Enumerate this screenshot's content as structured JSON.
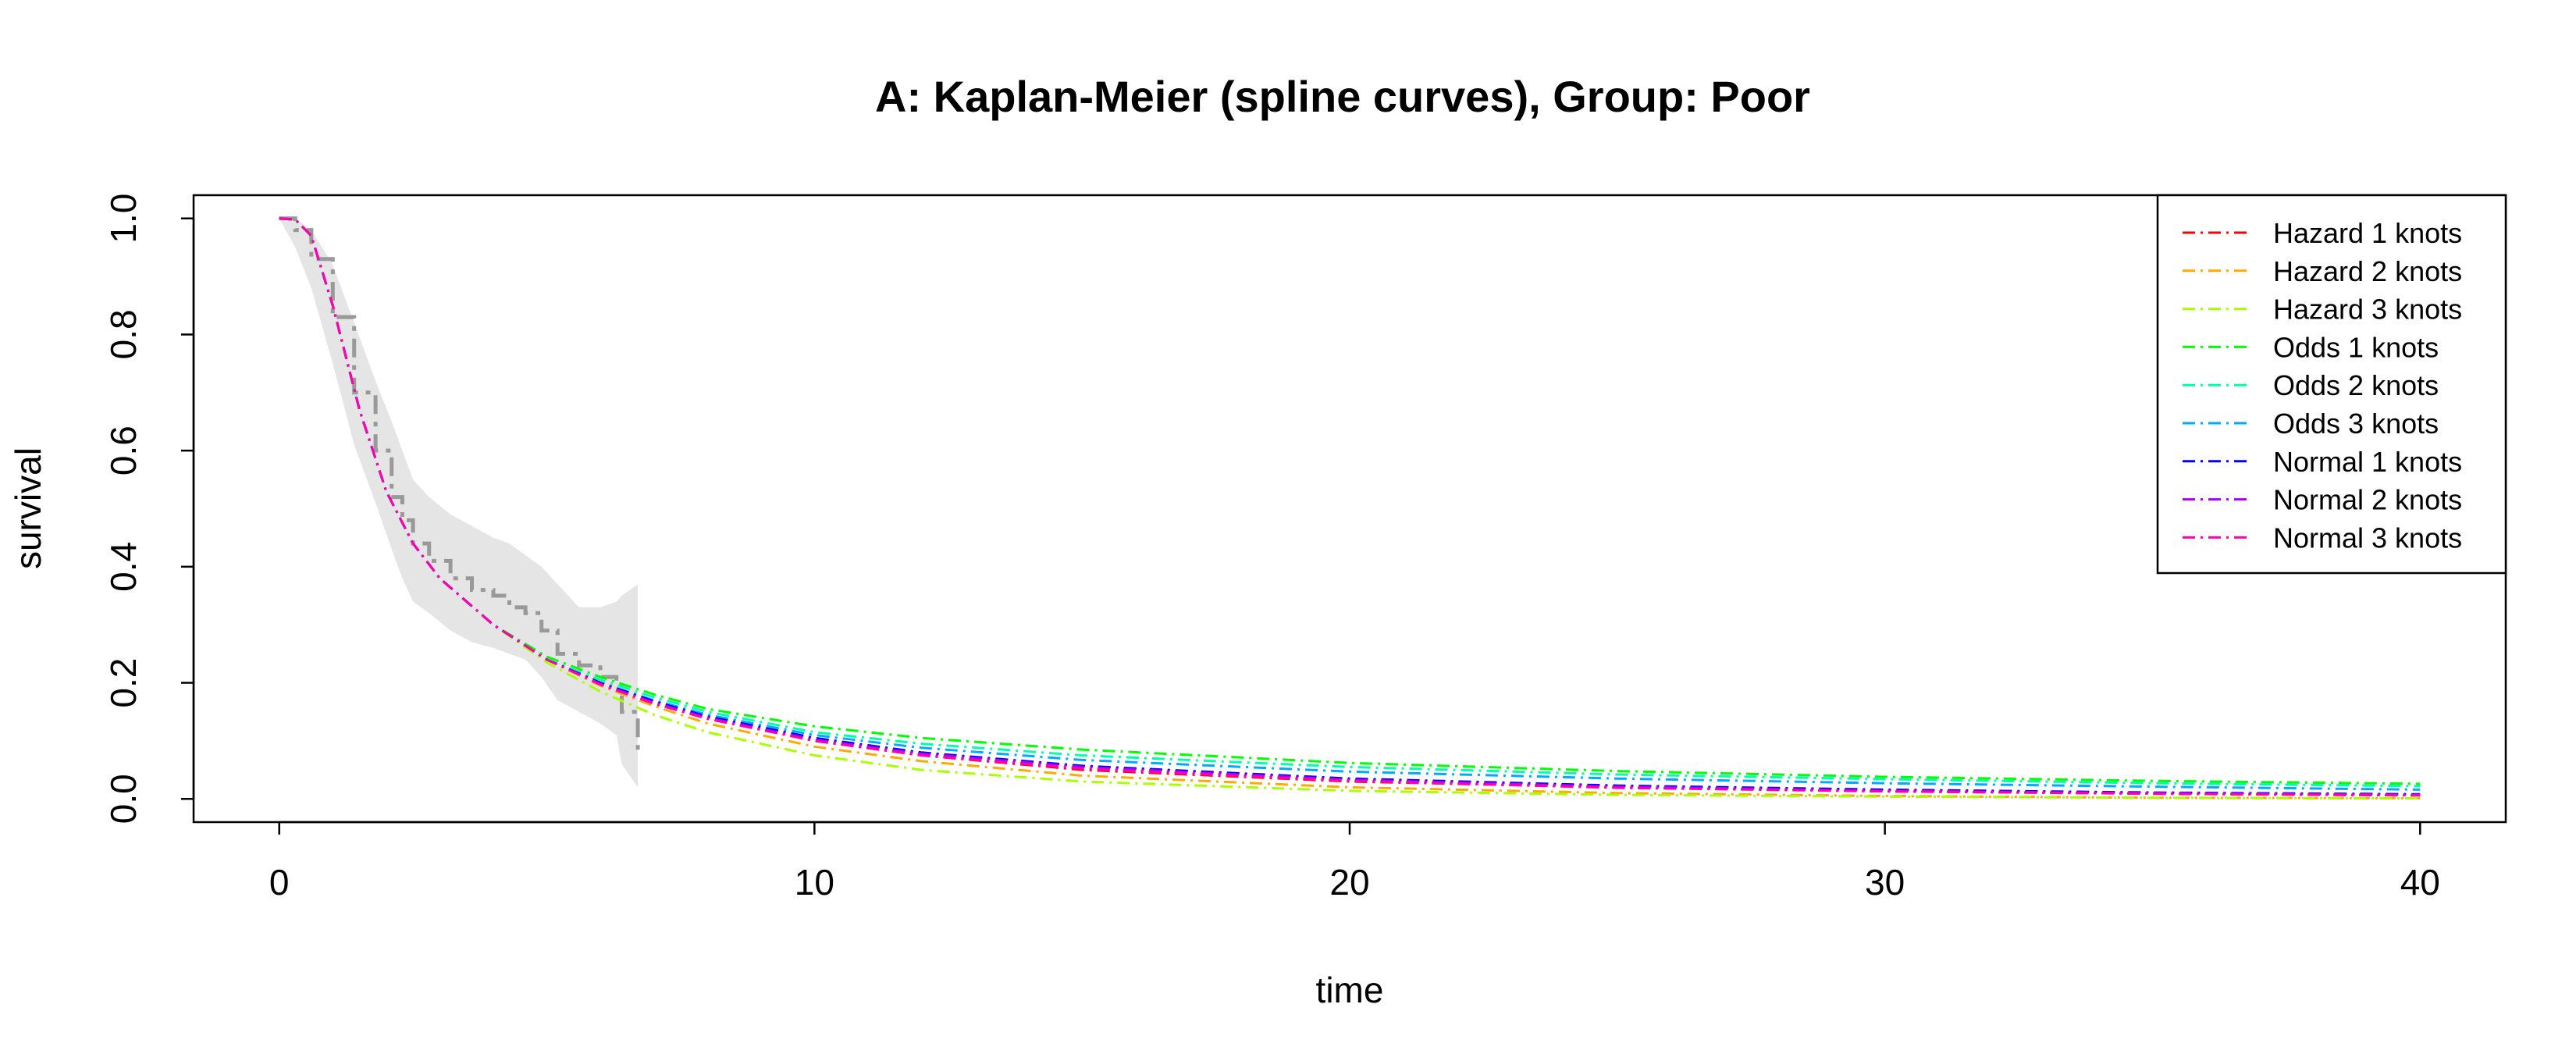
{
  "chart_data": {
    "type": "line",
    "title": "A: Kaplan-Meier (spline curves), Group: Poor",
    "xlabel": "time",
    "ylabel": "survival",
    "xlim": [
      -1.6,
      41.6
    ],
    "ylim": [
      -0.04,
      1.04
    ],
    "xticks": [
      "0",
      "10",
      "20",
      "30",
      "40"
    ],
    "yticks": [
      "0.0",
      "0.2",
      "0.4",
      "0.6",
      "0.8",
      "1.0"
    ],
    "grid": false,
    "legend_position": "top-right",
    "km_estimate": {
      "color": "#999999",
      "steps": [
        [
          0,
          1.0
        ],
        [
          0.3,
          0.98
        ],
        [
          0.6,
          0.93
        ],
        [
          1.0,
          0.83
        ],
        [
          1.4,
          0.7
        ],
        [
          1.8,
          0.6
        ],
        [
          2.1,
          0.52
        ],
        [
          2.3,
          0.48
        ],
        [
          2.5,
          0.44
        ],
        [
          2.8,
          0.41
        ],
        [
          3.2,
          0.38
        ],
        [
          3.6,
          0.36
        ],
        [
          4.0,
          0.35
        ],
        [
          4.3,
          0.33
        ],
        [
          4.6,
          0.32
        ],
        [
          4.9,
          0.29
        ],
        [
          5.2,
          0.25
        ],
        [
          5.6,
          0.23
        ],
        [
          6.0,
          0.21
        ],
        [
          6.3,
          0.2
        ],
        [
          6.4,
          0.15
        ],
        [
          6.7,
          0.08
        ]
      ]
    },
    "confidence_band": {
      "color": "#e5e5e5",
      "x": [
        0,
        0.3,
        0.6,
        1.0,
        1.4,
        1.8,
        2.1,
        2.3,
        2.5,
        2.8,
        3.2,
        3.6,
        4.0,
        4.3,
        4.6,
        4.9,
        5.2,
        5.6,
        6.0,
        6.3,
        6.4,
        6.7
      ],
      "upper": [
        1.0,
        1.0,
        0.98,
        0.92,
        0.82,
        0.72,
        0.65,
        0.6,
        0.55,
        0.52,
        0.49,
        0.47,
        0.45,
        0.44,
        0.42,
        0.4,
        0.37,
        0.33,
        0.33,
        0.34,
        0.35,
        0.37
      ],
      "lower": [
        1.0,
        0.95,
        0.88,
        0.75,
        0.61,
        0.51,
        0.43,
        0.38,
        0.34,
        0.32,
        0.29,
        0.27,
        0.26,
        0.25,
        0.24,
        0.21,
        0.17,
        0.15,
        0.13,
        0.11,
        0.06,
        0.02
      ]
    },
    "x": [
      0,
      0.3,
      0.6,
      1,
      1.5,
      2,
      2.5,
      3,
      4,
      5,
      6,
      7,
      8,
      10,
      12,
      15,
      20,
      25,
      30,
      35,
      40
    ],
    "series": [
      {
        "name": "Hazard 1 knots",
        "color": "#ff0000",
        "values": [
          1.0,
          0.998,
          0.97,
          0.85,
          0.67,
          0.53,
          0.44,
          0.38,
          0.3,
          0.24,
          0.2,
          0.165,
          0.14,
          0.1,
          0.075,
          0.05,
          0.03,
          0.02,
          0.013,
          0.009,
          0.006
        ]
      },
      {
        "name": "Hazard 2 knots",
        "color": "#ffaa00",
        "values": [
          1.0,
          0.998,
          0.97,
          0.85,
          0.67,
          0.53,
          0.44,
          0.38,
          0.3,
          0.24,
          0.195,
          0.16,
          0.13,
          0.09,
          0.065,
          0.04,
          0.02,
          0.01,
          0.005,
          0.002,
          0.001
        ]
      },
      {
        "name": "Hazard 3 knots",
        "color": "#aaff00",
        "values": [
          1.0,
          0.998,
          0.97,
          0.85,
          0.67,
          0.53,
          0.44,
          0.38,
          0.3,
          0.235,
          0.185,
          0.145,
          0.115,
          0.075,
          0.05,
          0.03,
          0.014,
          0.007,
          0.004,
          0.002,
          0.001
        ]
      },
      {
        "name": "Odds 1 knots",
        "color": "#00ff00",
        "values": [
          1.0,
          0.998,
          0.97,
          0.85,
          0.67,
          0.53,
          0.44,
          0.38,
          0.3,
          0.245,
          0.21,
          0.18,
          0.155,
          0.125,
          0.105,
          0.085,
          0.062,
          0.048,
          0.038,
          0.031,
          0.026
        ]
      },
      {
        "name": "Odds 2 knots",
        "color": "#00ffaa",
        "values": [
          1.0,
          0.998,
          0.97,
          0.85,
          0.67,
          0.53,
          0.44,
          0.38,
          0.3,
          0.24,
          0.205,
          0.175,
          0.15,
          0.115,
          0.095,
          0.075,
          0.055,
          0.042,
          0.034,
          0.027,
          0.022
        ]
      },
      {
        "name": "Odds 3 knots",
        "color": "#00aaff",
        "values": [
          1.0,
          0.998,
          0.97,
          0.85,
          0.67,
          0.53,
          0.44,
          0.38,
          0.3,
          0.24,
          0.2,
          0.17,
          0.145,
          0.11,
          0.088,
          0.067,
          0.047,
          0.035,
          0.027,
          0.021,
          0.016
        ]
      },
      {
        "name": "Normal 1 knots",
        "color": "#0000ff",
        "values": [
          1.0,
          0.998,
          0.97,
          0.85,
          0.67,
          0.53,
          0.44,
          0.38,
          0.3,
          0.24,
          0.2,
          0.168,
          0.142,
          0.105,
          0.08,
          0.057,
          0.035,
          0.023,
          0.016,
          0.011,
          0.008
        ]
      },
      {
        "name": "Normal 2 knots",
        "color": "#aa00ff",
        "values": [
          1.0,
          0.998,
          0.97,
          0.85,
          0.67,
          0.53,
          0.44,
          0.38,
          0.3,
          0.24,
          0.198,
          0.166,
          0.14,
          0.102,
          0.078,
          0.055,
          0.033,
          0.021,
          0.014,
          0.01,
          0.007
        ]
      },
      {
        "name": "Normal 3 knots",
        "color": "#ff00aa",
        "values": [
          1.0,
          0.998,
          0.97,
          0.85,
          0.67,
          0.53,
          0.44,
          0.38,
          0.3,
          0.24,
          0.197,
          0.164,
          0.138,
          0.1,
          0.075,
          0.052,
          0.031,
          0.019,
          0.013,
          0.009,
          0.006
        ]
      }
    ]
  }
}
